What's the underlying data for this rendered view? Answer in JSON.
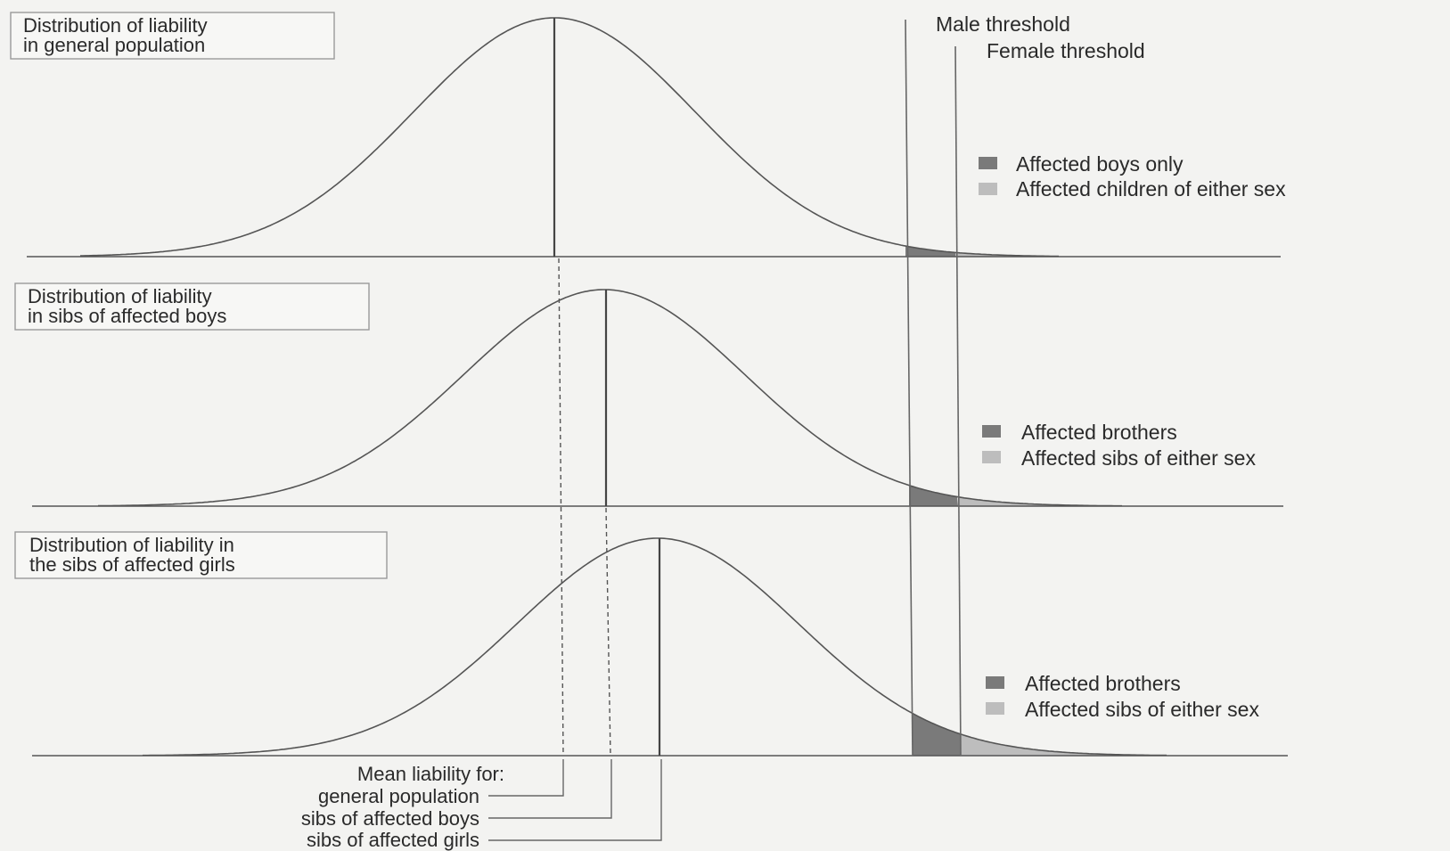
{
  "thresholds": {
    "male_label": "Male threshold",
    "female_label": "Female threshold"
  },
  "panels": [
    {
      "label_lines": [
        "Distribution of liability",
        "in general population"
      ],
      "legend": [
        {
          "label": "Affected boys only",
          "color": "#7a7a7a"
        },
        {
          "label": "Affected children of either sex",
          "color": "#bdbdbd"
        }
      ]
    },
    {
      "label_lines": [
        "Distribution of liability",
        "in sibs of affected boys"
      ],
      "legend": [
        {
          "label": "Affected brothers",
          "color": "#7a7a7a"
        },
        {
          "label": "Affected sibs of either sex",
          "color": "#bdbdbd"
        }
      ]
    },
    {
      "label_lines": [
        "Distribution of liability in",
        "the sibs of affected girls"
      ],
      "legend": [
        {
          "label": "Affected brothers",
          "color": "#7a7a7a"
        },
        {
          "label": "Affected sibs of either sex",
          "color": "#bdbdbd"
        }
      ]
    }
  ],
  "mean_labels": {
    "heading": "Mean liability for:",
    "general": "general population",
    "boys": "sibs of affected boys",
    "girls": "sibs of affected girls"
  }
}
